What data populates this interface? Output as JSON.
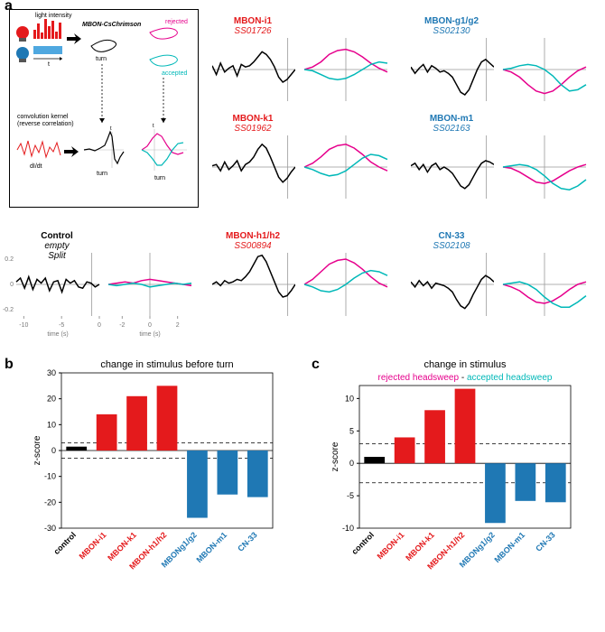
{
  "colors": {
    "red": "#e41a1c",
    "blue": "#1f78b4",
    "magenta": "#e6008c",
    "cyan": "#00b8b8",
    "black": "#000000",
    "gray_light": "#bdbdbd",
    "gray_axis": "#999999"
  },
  "panel_a": {
    "label": "a",
    "schematic": {
      "light_intensity_label": "light intensity",
      "mbon_label": "MBON-CsChrimson",
      "turn_label": "turn",
      "rejected_label": "rejected",
      "accepted_label": "accepted",
      "kernel_label": "convolution kernel\n(reverse correlation)",
      "dIdt_label": "dI/dt",
      "t_label": "t"
    },
    "axes": {
      "black_xticks": [
        -10,
        -5,
        0
      ],
      "color_xticks": [
        -2,
        0,
        2
      ],
      "yticks": [
        -0.2,
        0,
        0.2
      ],
      "xlabel": "time (s)",
      "ylabel": "dI/dt"
    },
    "kernels": {
      "control": {
        "name": "Control",
        "id": "empty\nSplit",
        "color": "#000000",
        "black": [
          0.02,
          0.05,
          -0.03,
          0.06,
          -0.04,
          0.04,
          0.01,
          0.05,
          -0.05,
          0.02,
          0.03,
          -0.06,
          0.04,
          0.01,
          0.03,
          -0.02,
          -0.03,
          0.02,
          0.01,
          -0.02,
          0.0
        ],
        "magenta": [
          0.0,
          0.01,
          0.02,
          0.01,
          0.03,
          0.04,
          0.03,
          0.02,
          0.01,
          0.0,
          -0.01
        ],
        "cyan": [
          0.0,
          -0.01,
          0.0,
          0.01,
          0.0,
          -0.02,
          -0.01,
          0.0,
          0.01,
          0.0,
          0.01
        ]
      },
      "mbon_i1": {
        "name": "MBON-i1",
        "id": "SS01726",
        "color": "#e41a1c",
        "black": [
          0.03,
          -0.04,
          0.05,
          -0.02,
          0.01,
          0.03,
          -0.05,
          0.04,
          0.02,
          0.03,
          0.06,
          0.1,
          0.14,
          0.12,
          0.08,
          0.02,
          -0.06,
          -0.1,
          -0.08,
          -0.04,
          0.0
        ],
        "magenta": [
          0.0,
          0.02,
          0.06,
          0.12,
          0.15,
          0.16,
          0.14,
          0.1,
          0.05,
          0.01,
          -0.02
        ],
        "cyan": [
          0.0,
          -0.01,
          -0.04,
          -0.07,
          -0.08,
          -0.07,
          -0.04,
          0.0,
          0.04,
          0.06,
          0.05
        ]
      },
      "mbon_k1": {
        "name": "MBON-k1",
        "id": "SS01962",
        "color": "#e41a1c",
        "black": [
          0.01,
          0.02,
          -0.03,
          0.04,
          -0.02,
          0.01,
          0.05,
          -0.03,
          0.02,
          0.04,
          0.08,
          0.14,
          0.18,
          0.15,
          0.08,
          0.0,
          -0.08,
          -0.12,
          -0.09,
          -0.04,
          0.0
        ],
        "magenta": [
          0.0,
          0.03,
          0.08,
          0.14,
          0.17,
          0.18,
          0.15,
          0.1,
          0.04,
          0.0,
          -0.03
        ],
        "cyan": [
          0.0,
          -0.02,
          -0.05,
          -0.07,
          -0.06,
          -0.03,
          0.02,
          0.07,
          0.1,
          0.09,
          0.06
        ]
      },
      "mbon_h1h2": {
        "name": "MBON-h1/h2",
        "id": "SS00894",
        "color": "#e41a1c",
        "black": [
          0.0,
          0.02,
          -0.01,
          0.03,
          0.01,
          0.02,
          0.04,
          0.03,
          0.06,
          0.1,
          0.16,
          0.22,
          0.23,
          0.18,
          0.1,
          0.02,
          -0.06,
          -0.1,
          -0.09,
          -0.05,
          0.0
        ],
        "magenta": [
          0.0,
          0.04,
          0.1,
          0.16,
          0.19,
          0.2,
          0.17,
          0.12,
          0.06,
          0.01,
          -0.02
        ],
        "cyan": [
          0.0,
          -0.02,
          -0.05,
          -0.06,
          -0.04,
          0.0,
          0.05,
          0.09,
          0.11,
          0.1,
          0.07
        ]
      },
      "mbon_g1g2": {
        "name": "MBON-g1/g2",
        "id": "SS02130",
        "color": "#1f78b4",
        "black": [
          0.02,
          -0.03,
          0.01,
          0.04,
          -0.02,
          0.03,
          0.01,
          -0.02,
          -0.01,
          -0.03,
          -0.06,
          -0.12,
          -0.18,
          -0.2,
          -0.16,
          -0.08,
          0.0,
          0.06,
          0.08,
          0.05,
          0.02
        ],
        "magenta": [
          0.0,
          -0.02,
          -0.06,
          -0.12,
          -0.17,
          -0.19,
          -0.17,
          -0.12,
          -0.06,
          -0.01,
          0.02
        ],
        "cyan": [
          0.0,
          0.01,
          0.03,
          0.04,
          0.03,
          0.0,
          -0.05,
          -0.12,
          -0.17,
          -0.16,
          -0.12
        ]
      },
      "mbon_m1": {
        "name": "MBON-m1",
        "id": "SS02163",
        "color": "#1f78b4",
        "black": [
          0.01,
          0.03,
          -0.02,
          0.02,
          -0.04,
          0.01,
          0.03,
          -0.02,
          0.0,
          -0.02,
          -0.05,
          -0.1,
          -0.15,
          -0.17,
          -0.14,
          -0.08,
          -0.02,
          0.03,
          0.05,
          0.04,
          0.02
        ],
        "magenta": [
          0.0,
          -0.01,
          -0.04,
          -0.08,
          -0.12,
          -0.13,
          -0.11,
          -0.07,
          -0.03,
          0.0,
          0.02
        ],
        "cyan": [
          0.0,
          0.01,
          0.02,
          0.01,
          -0.02,
          -0.07,
          -0.13,
          -0.17,
          -0.18,
          -0.15,
          -0.1
        ]
      },
      "cn33": {
        "name": "CN-33",
        "id": "SS02108",
        "color": "#1f78b4",
        "black": [
          0.02,
          -0.02,
          0.03,
          -0.01,
          0.02,
          -0.03,
          0.01,
          0.0,
          -0.01,
          -0.03,
          -0.06,
          -0.12,
          -0.17,
          -0.19,
          -0.15,
          -0.08,
          -0.02,
          0.04,
          0.07,
          0.05,
          0.02
        ],
        "magenta": [
          0.0,
          -0.02,
          -0.05,
          -0.1,
          -0.14,
          -0.15,
          -0.13,
          -0.09,
          -0.04,
          0.0,
          0.02
        ],
        "cyan": [
          0.0,
          0.01,
          0.02,
          0.0,
          -0.04,
          -0.1,
          -0.15,
          -0.18,
          -0.18,
          -0.14,
          -0.09
        ]
      }
    }
  },
  "panel_b": {
    "label": "b",
    "title": "change in stimulus before turn",
    "ylabel": "z-score",
    "ylim": [
      -30,
      30
    ],
    "ytick_step": 10,
    "dashed": [
      -3,
      3
    ],
    "categories": [
      "control",
      "MBON-i1",
      "MBON-k1",
      "MBON-h1/h2",
      "MBONg1/g2",
      "MBON-m1",
      "CN-33"
    ],
    "values": [
      1.5,
      14,
      21,
      25,
      -26,
      -17,
      -18
    ],
    "bar_colors": [
      "#000000",
      "#e41a1c",
      "#e41a1c",
      "#e41a1c",
      "#1f78b4",
      "#1f78b4",
      "#1f78b4"
    ]
  },
  "panel_c": {
    "label": "c",
    "title": "change in stimulus",
    "subtitle_left": "rejected headsweep",
    "subtitle_right": "accepted headsweep",
    "subtitle_dash": " - ",
    "ylabel": "z-score",
    "ylim": [
      -10,
      12
    ],
    "yticks": [
      -10,
      -5,
      0,
      5,
      10
    ],
    "dashed": [
      -3,
      3
    ],
    "categories": [
      "control",
      "MBON-i1",
      "MBON-k1",
      "MBON-h1/h2",
      "MBONg1/g2",
      "MBON-m1",
      "CN-33"
    ],
    "values": [
      1.0,
      4.0,
      8.2,
      11.5,
      -9.2,
      -5.8,
      -6.0
    ],
    "bar_colors": [
      "#000000",
      "#e41a1c",
      "#e41a1c",
      "#e41a1c",
      "#1f78b4",
      "#1f78b4",
      "#1f78b4"
    ]
  }
}
